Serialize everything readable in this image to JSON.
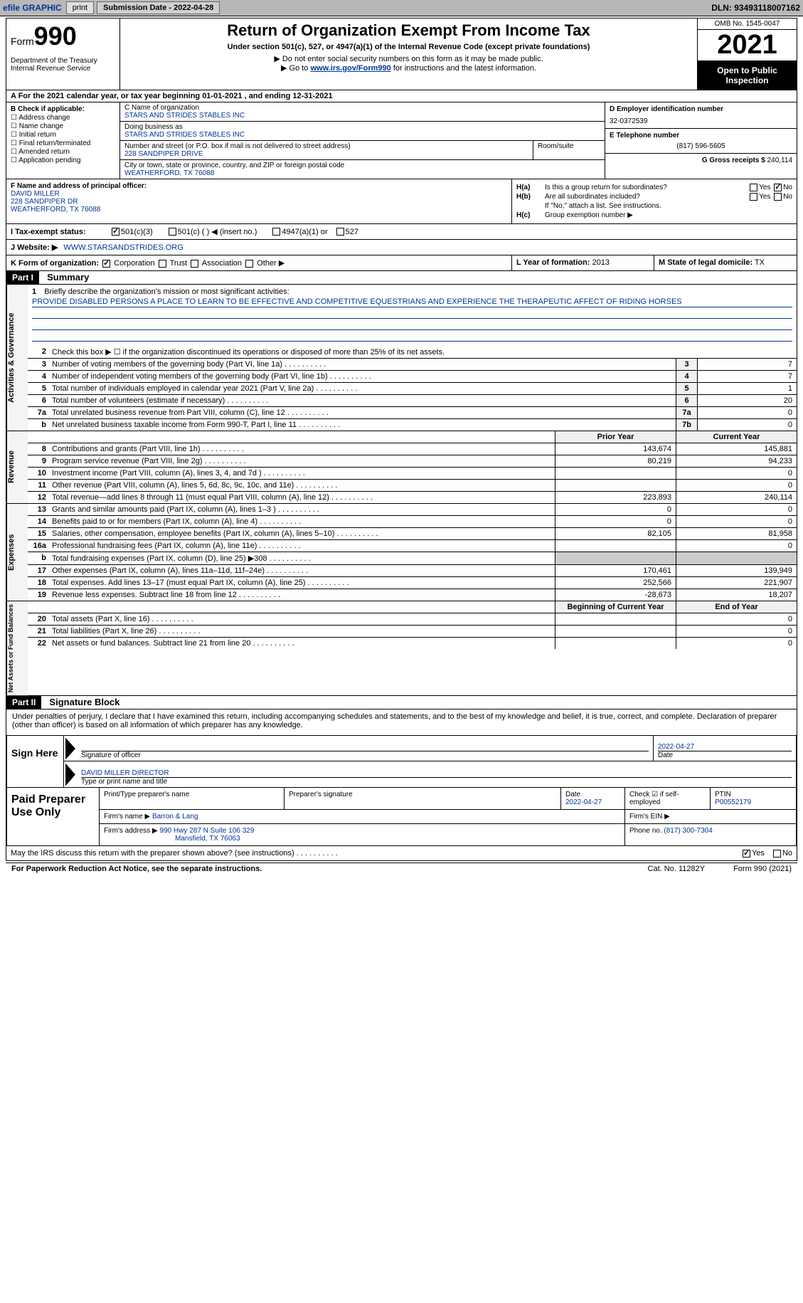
{
  "topbar": {
    "efile": "efile GRAPHIC",
    "print": "print",
    "submission_label": "Submission Date - 2022-04-28",
    "dln": "DLN: 93493118007162"
  },
  "header": {
    "form_prefix": "Form",
    "form_number": "990",
    "title": "Return of Organization Exempt From Income Tax",
    "subtitle": "Under section 501(c), 527, or 4947(a)(1) of the Internal Revenue Code (except private foundations)",
    "note1": "▶ Do not enter social security numbers on this form as it may be made public.",
    "note2_prefix": "▶ Go to ",
    "note2_link": "www.irs.gov/Form990",
    "note2_suffix": " for instructions and the latest information.",
    "dept": "Department of the Treasury\nInternal Revenue Service",
    "omb": "OMB No. 1545-0047",
    "year": "2021",
    "inspect": "Open to Public Inspection"
  },
  "line_a": "A For the 2021 calendar year, or tax year beginning 01-01-2021    , and ending 12-31-2021",
  "section_b": {
    "label": "B Check if applicable:",
    "items": [
      "Address change",
      "Name change",
      "Initial return",
      "Final return/terminated",
      "Amended return",
      "Application pending"
    ]
  },
  "section_c": {
    "name_label": "C Name of organization",
    "name": "STARS AND STRIDES STABLES INC",
    "dba_label": "Doing business as",
    "dba": "STARS AND STRIDES STABLES INC",
    "street_label": "Number and street (or P.O. box if mail is not delivered to street address)",
    "room_label": "Room/suite",
    "street": "228 SANDPIPER DRIVE",
    "city_label": "City or town, state or province, country, and ZIP or foreign postal code",
    "city": "WEATHERFORD, TX  76088"
  },
  "section_d": {
    "ein_label": "D Employer identification number",
    "ein": "32-0372539",
    "phone_label": "E Telephone number",
    "phone": "(817) 596-5605",
    "gross_label": "G Gross receipts $",
    "gross": "240,114"
  },
  "section_f": {
    "label": "F  Name and address of principal officer:",
    "name": "DAVID MILLER",
    "addr1": "228 SANDPIPER DR",
    "addr2": "WEATHERFORD, TX  76088"
  },
  "section_h": {
    "a_label": "H(a)",
    "a_text": "Is this a group return for subordinates?",
    "b_label": "H(b)",
    "b_text": "Are all subordinates included?",
    "b_note": "If \"No,\" attach a list. See instructions.",
    "c_label": "H(c)",
    "c_text": "Group exemption number ▶",
    "yes": "Yes",
    "no": "No"
  },
  "line_i": {
    "label": "I   Tax-exempt status:",
    "opt1": "501(c)(3)",
    "opt2": "501(c) (   ) ◀ (insert no.)",
    "opt3": "4947(a)(1) or",
    "opt4": "527"
  },
  "line_j": {
    "label": "J   Website: ▶",
    "value": "WWW.STARSANDSTRIDES.ORG"
  },
  "line_k": {
    "label": "K Form of organization:",
    "opts": [
      "Corporation",
      "Trust",
      "Association",
      "Other ▶"
    ],
    "l_label": "L Year of formation:",
    "l_value": "2013",
    "m_label": "M State of legal domicile:",
    "m_value": "TX"
  },
  "part1": {
    "label": "Part I",
    "title": "Summary",
    "line1_label": "1",
    "line1_text": "Briefly describe the organization's mission or most significant activities:",
    "mission": "PROVIDE DISABLED PERSONS A PLACE TO LEARN TO BE EFFECTIVE AND COMPETITIVE EQUESTRIANS AND EXPERIENCE THE THERAPEUTIC AFFECT OF RIDING HORSES",
    "line2_text": "Check this box ▶ ☐  if the organization discontinued its operations or disposed of more than 25% of its net assets.",
    "tabs": {
      "gov": "Activities & Governance",
      "rev": "Revenue",
      "exp": "Expenses",
      "net": "Net Assets or Fund Balances"
    },
    "gov_lines": [
      {
        "n": "3",
        "t": "Number of voting members of the governing body (Part VI, line 1a)",
        "b": "3",
        "v": "7"
      },
      {
        "n": "4",
        "t": "Number of independent voting members of the governing body (Part VI, line 1b)",
        "b": "4",
        "v": "7"
      },
      {
        "n": "5",
        "t": "Total number of individuals employed in calendar year 2021 (Part V, line 2a)",
        "b": "5",
        "v": "1"
      },
      {
        "n": "6",
        "t": "Total number of volunteers (estimate if necessary)",
        "b": "6",
        "v": "20"
      },
      {
        "n": "7a",
        "t": "Total unrelated business revenue from Part VIII, column (C), line 12",
        "b": "7a",
        "v": "0"
      },
      {
        "n": "b",
        "t": "Net unrelated business taxable income from Form 990-T, Part I, line 11",
        "b": "7b",
        "v": "0"
      }
    ],
    "col_prior": "Prior Year",
    "col_current": "Current Year",
    "rev_lines": [
      {
        "n": "8",
        "t": "Contributions and grants (Part VIII, line 1h)",
        "p": "143,674",
        "c": "145,881"
      },
      {
        "n": "9",
        "t": "Program service revenue (Part VIII, line 2g)",
        "p": "80,219",
        "c": "94,233"
      },
      {
        "n": "10",
        "t": "Investment income (Part VIII, column (A), lines 3, 4, and 7d )",
        "p": "",
        "c": "0"
      },
      {
        "n": "11",
        "t": "Other revenue (Part VIII, column (A), lines 5, 6d, 8c, 9c, 10c, and 11e)",
        "p": "",
        "c": "0"
      },
      {
        "n": "12",
        "t": "Total revenue—add lines 8 through 11 (must equal Part VIII, column (A), line 12)",
        "p": "223,893",
        "c": "240,114"
      }
    ],
    "exp_lines": [
      {
        "n": "13",
        "t": "Grants and similar amounts paid (Part IX, column (A), lines 1–3 )",
        "p": "0",
        "c": "0"
      },
      {
        "n": "14",
        "t": "Benefits paid to or for members (Part IX, column (A), line 4)",
        "p": "0",
        "c": "0"
      },
      {
        "n": "15",
        "t": "Salaries, other compensation, employee benefits (Part IX, column (A), lines 5–10)",
        "p": "82,105",
        "c": "81,958"
      },
      {
        "n": "16a",
        "t": "Professional fundraising fees (Part IX, column (A), line 11e)",
        "p": "",
        "c": "0"
      },
      {
        "n": "b",
        "t": "Total fundraising expenses (Part IX, column (D), line 25) ▶308",
        "p": "gray",
        "c": "gray"
      },
      {
        "n": "17",
        "t": "Other expenses (Part IX, column (A), lines 11a–11d, 11f–24e)",
        "p": "170,461",
        "c": "139,949"
      },
      {
        "n": "18",
        "t": "Total expenses. Add lines 13–17 (must equal Part IX, column (A), line 25)",
        "p": "252,566",
        "c": "221,907"
      },
      {
        "n": "19",
        "t": "Revenue less expenses. Subtract line 18 from line 12",
        "p": "-28,673",
        "c": "18,207"
      }
    ],
    "col_begin": "Beginning of Current Year",
    "col_end": "End of Year",
    "net_lines": [
      {
        "n": "20",
        "t": "Total assets (Part X, line 16)",
        "p": "",
        "c": "0"
      },
      {
        "n": "21",
        "t": "Total liabilities (Part X, line 26)",
        "p": "",
        "c": "0"
      },
      {
        "n": "22",
        "t": "Net assets or fund balances. Subtract line 21 from line 20",
        "p": "",
        "c": "0"
      }
    ]
  },
  "part2": {
    "label": "Part II",
    "title": "Signature Block",
    "decl": "Under penalties of perjury, I declare that I have examined this return, including accompanying schedules and statements, and to the best of my knowledge and belief, it is true, correct, and complete. Declaration of preparer (other than officer) is based on all information of which preparer has any knowledge.",
    "sign_here": "Sign Here",
    "sig_officer": "Signature of officer",
    "sig_date": "2022-04-27",
    "date_label": "Date",
    "officer_name": "DAVID MILLER  DIRECTOR",
    "type_name": "Type or print name and title",
    "paid_prep": "Paid Preparer Use Only",
    "prep_name_label": "Print/Type preparer's name",
    "prep_sig_label": "Preparer's signature",
    "prep_date_label": "Date",
    "prep_date": "2022-04-27",
    "check_if": "Check ☑ if self-employed",
    "ptin_label": "PTIN",
    "ptin": "P00552179",
    "firm_name_label": "Firm's name    ▶",
    "firm_name": "Barron & Lang",
    "firm_ein_label": "Firm's EIN ▶",
    "firm_addr_label": "Firm's address ▶",
    "firm_addr1": "990 Hwy 287 N Suite 106 329",
    "firm_addr2": "Mansfield, TX  76063",
    "firm_phone_label": "Phone no.",
    "firm_phone": "(817) 300-7304",
    "may_irs": "May the IRS discuss this return with the preparer shown above? (see instructions)",
    "yes": "Yes",
    "no": "No"
  },
  "footer": {
    "paperwork": "For Paperwork Reduction Act Notice, see the separate instructions.",
    "cat": "Cat. No. 11282Y",
    "form": "Form 990 (2021)"
  }
}
